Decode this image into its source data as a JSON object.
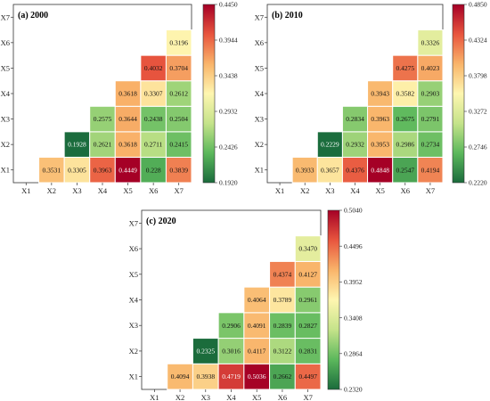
{
  "chart_data": [
    {
      "type": "heatmap",
      "title": "(a) 2000",
      "x_labels": [
        "X1",
        "X2",
        "X3",
        "X4",
        "X5",
        "X6",
        "X7"
      ],
      "y_labels": [
        "X1",
        "X2",
        "X3",
        "X4",
        "X5",
        "X6",
        "X7"
      ],
      "rows": [
        {
          "y": "X1",
          "values": [
            null,
            "0.3531",
            "0.3305",
            "0.3963",
            "0.4449",
            "0.228",
            "0.3839"
          ]
        },
        {
          "y": "X2",
          "values": [
            null,
            null,
            "0.1928",
            "0.2621",
            "0.3618",
            "0.2711",
            "0.2415"
          ]
        },
        {
          "y": "X3",
          "values": [
            null,
            null,
            null,
            "0.2575",
            "0.3644",
            "0.2438",
            "0.2504"
          ]
        },
        {
          "y": "X4",
          "values": [
            null,
            null,
            null,
            null,
            "0.3618",
            "0.3307",
            "0.2612"
          ]
        },
        {
          "y": "X5",
          "values": [
            null,
            null,
            null,
            null,
            null,
            "0.4032",
            "0.3704"
          ]
        },
        {
          "y": "X6",
          "values": [
            null,
            null,
            null,
            null,
            null,
            null,
            "0.3196"
          ]
        },
        {
          "y": "X7",
          "values": [
            null,
            null,
            null,
            null,
            null,
            null,
            null
          ]
        }
      ],
      "colorbar_ticks": [
        "0.4450",
        "0.3944",
        "0.3438",
        "0.2932",
        "0.2426",
        "0.1920"
      ],
      "colorbar_range": [
        0.192,
        0.445
      ],
      "colormap": [
        "#1a6b3c",
        "#5cb85c",
        "#c5e38a",
        "#fef6b0",
        "#f9b46a",
        "#e8553e",
        "#a50026"
      ]
    },
    {
      "type": "heatmap",
      "title": "(b) 2010",
      "x_labels": [
        "X1",
        "X2",
        "X3",
        "X4",
        "X5",
        "X6",
        "X7"
      ],
      "y_labels": [
        "X1",
        "X2",
        "X3",
        "X4",
        "X5",
        "X6",
        "X7"
      ],
      "rows": [
        {
          "y": "X1",
          "values": [
            null,
            "0.3933",
            "0.3657",
            "0.4376",
            "0.4848",
            "0.2547",
            "0.4194"
          ]
        },
        {
          "y": "X2",
          "values": [
            null,
            null,
            "0.2229",
            "0.2932",
            "0.3953",
            "0.2986",
            "0.2734"
          ]
        },
        {
          "y": "X3",
          "values": [
            null,
            null,
            null,
            "0.2834",
            "0.3963",
            "0.2675",
            "0.2791"
          ]
        },
        {
          "y": "X4",
          "values": [
            null,
            null,
            null,
            null,
            "0.3943",
            "0.3582",
            "0.2903"
          ]
        },
        {
          "y": "X5",
          "values": [
            null,
            null,
            null,
            null,
            null,
            "0.4275",
            "0.4023"
          ]
        },
        {
          "y": "X6",
          "values": [
            null,
            null,
            null,
            null,
            null,
            null,
            "0.3326"
          ]
        },
        {
          "y": "X7",
          "values": [
            null,
            null,
            null,
            null,
            null,
            null,
            null
          ]
        }
      ],
      "colorbar_ticks": [
        "0.4850",
        "0.4324",
        "0.3798",
        "0.3272",
        "0.2746",
        "0.2220"
      ],
      "colorbar_range": [
        0.222,
        0.485
      ],
      "colormap": [
        "#1a6b3c",
        "#5cb85c",
        "#c5e38a",
        "#fef6b0",
        "#f9b46a",
        "#e8553e",
        "#a50026"
      ]
    },
    {
      "type": "heatmap",
      "title": "(c) 2020",
      "x_labels": [
        "X1",
        "X2",
        "X3",
        "X4",
        "X5",
        "X6",
        "X7"
      ],
      "y_labels": [
        "X1",
        "X2",
        "X3",
        "X4",
        "X5",
        "X6",
        "X7"
      ],
      "rows": [
        {
          "y": "X1",
          "values": [
            null,
            "0.4094",
            "0.3938",
            "0.4719",
            "0.5036",
            "0.2662",
            "0.4497"
          ]
        },
        {
          "y": "X2",
          "values": [
            null,
            null,
            "0.2325",
            "0.3016",
            "0.4117",
            "0.3122",
            "0.2831"
          ]
        },
        {
          "y": "X3",
          "values": [
            null,
            null,
            null,
            "0.2906",
            "0.4091",
            "0.2839",
            "0.2827"
          ]
        },
        {
          "y": "X4",
          "values": [
            null,
            null,
            null,
            null,
            "0.4064",
            "0.3789",
            "0.2961"
          ]
        },
        {
          "y": "X5",
          "values": [
            null,
            null,
            null,
            null,
            null,
            "0.4374",
            "0.4127"
          ]
        },
        {
          "y": "X6",
          "values": [
            null,
            null,
            null,
            null,
            null,
            null,
            "0.3470"
          ]
        },
        {
          "y": "X7",
          "values": [
            null,
            null,
            null,
            null,
            null,
            null,
            null
          ]
        }
      ],
      "colorbar_ticks": [
        "0.5040",
        "0.4496",
        "0.3952",
        "0.3408",
        "0.2864",
        "0.2320"
      ],
      "colorbar_range": [
        0.232,
        0.504
      ],
      "colormap": [
        "#1a6b3c",
        "#5cb85c",
        "#c5e38a",
        "#fef6b0",
        "#f9b46a",
        "#e8553e",
        "#a50026"
      ]
    }
  ]
}
